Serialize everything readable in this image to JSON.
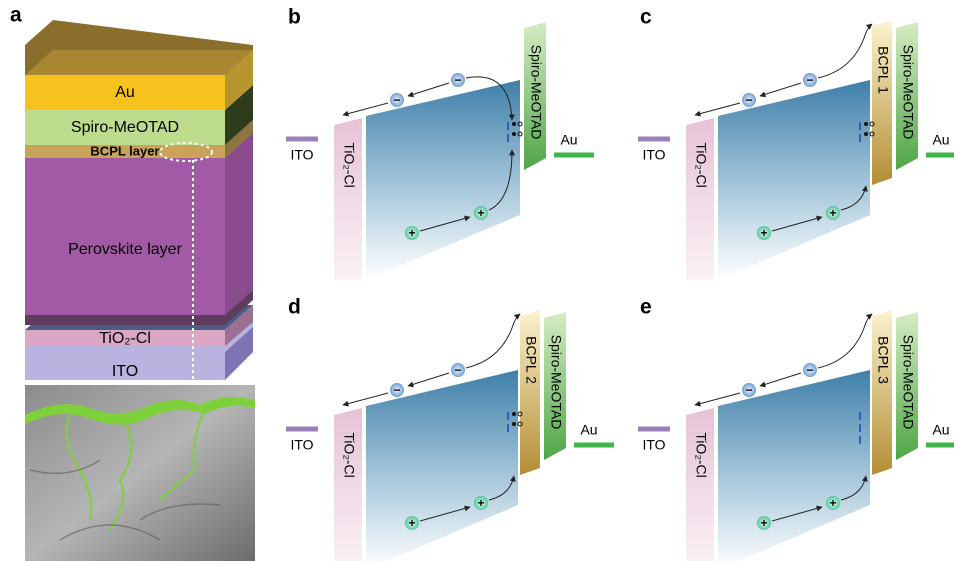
{
  "panel_a": {
    "label": "a",
    "layers": {
      "au": "Au",
      "spiro": "Spiro-MeOTAD",
      "bcpl": "BCPL layer",
      "perovskite": "Perovskite layer",
      "tio2": "TiO₂-Cl",
      "ito": "ITO"
    }
  },
  "electron_sign": "−",
  "hole_sign": "+",
  "panels": [
    {
      "label": "b",
      "ito": "ITO",
      "etl": "TiO₂-Cl",
      "htl": "Spiro-MeOTAD",
      "au": "Au"
    },
    {
      "label": "c",
      "ito": "ITO",
      "etl": "TiO₂-Cl",
      "bcpl": "BCPL 1",
      "htl": "Spiro-MeOTAD",
      "au": "Au"
    },
    {
      "label": "d",
      "ito": "ITO",
      "etl": "TiO₂-Cl",
      "bcpl": "BCPL 2",
      "htl": "Spiro-MeOTAD",
      "au": "Au"
    },
    {
      "label": "e",
      "ito": "ITO",
      "etl": "TiO₂-Cl",
      "bcpl": "BCPL 3",
      "htl": "Spiro-MeOTAD",
      "au": "Au"
    }
  ]
}
